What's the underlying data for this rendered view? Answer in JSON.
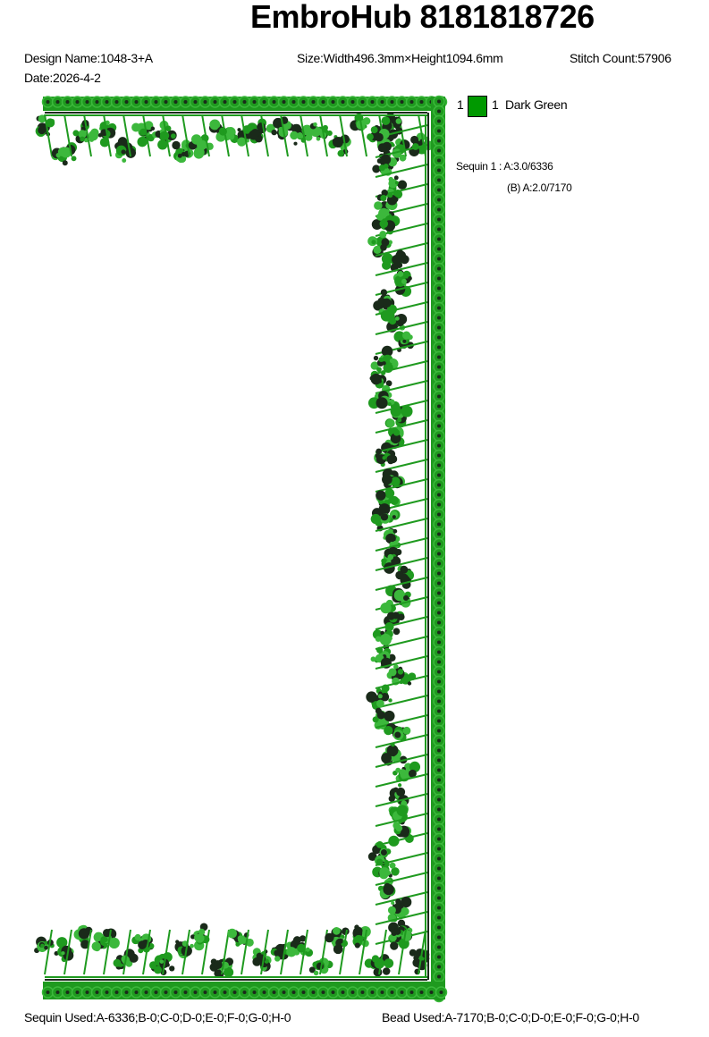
{
  "header": {
    "title": "EmbroHub 8181818726",
    "design_name": "Design Name:1048-3+A",
    "date": "Date:2026-4-2",
    "size": "Size:Width496.3mm×Height1094.6mm",
    "stitch_count": "Stitch Count:57906"
  },
  "colors": [
    {
      "index": "1",
      "number": "1",
      "name": "Dark Green",
      "hex": "#009900"
    }
  ],
  "sequins": {
    "line1": "Sequin 1 : A:3.0/6336",
    "line2": "(B) A:2.0/7170"
  },
  "footer": {
    "sequin_used": "Sequin Used:A-6336;B-0;C-0;D-0;E-0;F-0;G-0;H-0",
    "bead_used": "Bead Used:A-7170;B-0;C-0;D-0;E-0;F-0;G-0;H-0"
  },
  "design_colors": {
    "green": "#1f9a1f",
    "light": "#3cb83c",
    "dark": "#1a2a1a"
  }
}
